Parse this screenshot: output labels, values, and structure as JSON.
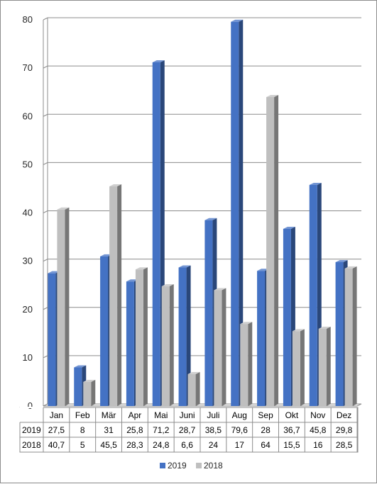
{
  "chart_data": {
    "type": "bar",
    "title": "",
    "xlabel": "",
    "ylabel": "",
    "ylim": [
      0,
      80
    ],
    "yticks": [
      0,
      10,
      20,
      30,
      40,
      50,
      60,
      70,
      80
    ],
    "grid": true,
    "legend_position": "bottom",
    "data_table": true,
    "categories": [
      "Jan",
      "Feb",
      "Mär",
      "Apr",
      "Mai",
      "Juni",
      "Juli",
      "Aug",
      "Sep",
      "Okt",
      "Nov",
      "Dez"
    ],
    "series": [
      {
        "name": "2019",
        "color": "#4472c4",
        "values": [
          27.5,
          8,
          31,
          25.8,
          71.2,
          28.7,
          38.5,
          79.6,
          28,
          36.7,
          45.8,
          29.8
        ],
        "labels": [
          "27,5",
          "8",
          "31",
          "25,8",
          "71,2",
          "28,7",
          "38,5",
          "79,6",
          "28",
          "36,7",
          "45,8",
          "29,8"
        ]
      },
      {
        "name": "2018",
        "color": "#bfbfbf",
        "values": [
          40.7,
          5,
          45.5,
          28.3,
          24.8,
          6.6,
          24,
          17,
          64,
          15.5,
          16,
          28.5
        ],
        "labels": [
          "40,7",
          "5",
          "45,5",
          "28,3",
          "24,8",
          "6,6",
          "24",
          "17",
          "64",
          "15,5",
          "16",
          "28,5"
        ]
      }
    ]
  }
}
